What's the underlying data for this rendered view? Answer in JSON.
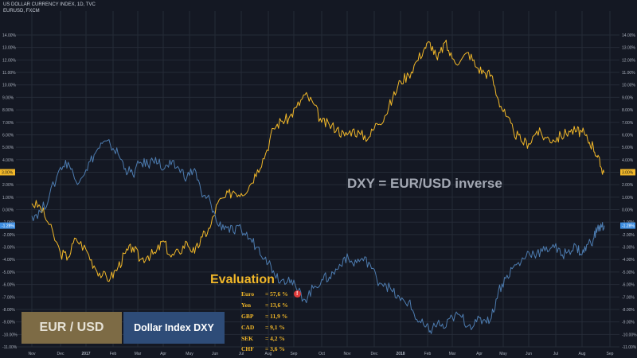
{
  "header": {
    "line1": "US DOLLAR CURRENCY INDEX, 1D, TVC",
    "line2": "EURUSD, FXCM"
  },
  "overlay_title": "DXY = EUR/USD inverse",
  "evaluation": {
    "title": "Evaluation",
    "weights": [
      {
        "currency": "Euro",
        "value": "= 57,6 %",
        "warning": "!"
      },
      {
        "currency": "Yen",
        "value": "= 13,6 %"
      },
      {
        "currency": "GBP",
        "value": "= 11,9 %"
      },
      {
        "currency": "CAD",
        "value": "= 9,1 %"
      },
      {
        "currency": "SEK",
        "value": "= 4,2 %"
      },
      {
        "currency": "CHF",
        "value": "= 3,6 %"
      }
    ]
  },
  "legend_boxes": {
    "eur_usd": "EUR / USD",
    "dxy": "Dollar Index DXY"
  },
  "colors": {
    "background": "#141823",
    "grid": "#252b37",
    "eurusd_line": "#f2b829",
    "dxy_line": "#4d7cb0",
    "axis_text": "#aab1bd"
  },
  "chart_data": {
    "type": "line",
    "ylim": [
      -11,
      14
    ],
    "y_ticks": [
      "14.00%",
      "13.00%",
      "12.00%",
      "11.00%",
      "10.00%",
      "9.00%",
      "8.00%",
      "7.00%",
      "6.00%",
      "5.00%",
      "4.00%",
      "3.00%",
      "2.00%",
      "1.00%",
      "0.00%",
      "-1.00%",
      "-2.00%",
      "-3.00%",
      "-4.00%",
      "-5.00%",
      "-6.00%",
      "-7.00%",
      "-8.00%",
      "-9.00%",
      "-10.00%",
      "-11.00%"
    ],
    "x_ticks": [
      "Nov",
      "Dec",
      "2017",
      "Feb",
      "Mar",
      "Apr",
      "May",
      "Jun",
      "Jul",
      "Aug",
      "Sep",
      "Oct",
      "Nov",
      "Dec",
      "2018",
      "Feb",
      "Mar",
      "Apr",
      "May",
      "Jun",
      "Jul",
      "Aug",
      "Sep"
    ],
    "x_range": [
      0,
      22
    ],
    "last_value_labels": {
      "eurusd": "3.00%",
      "dxy": "-1.28%"
    },
    "series": [
      {
        "key": "eurusd",
        "points": [
          [
            0,
            0.5
          ],
          [
            0.3,
            0.2
          ],
          [
            0.6,
            -1.2
          ],
          [
            1.0,
            -3.5
          ],
          [
            1.3,
            -3.8
          ],
          [
            1.6,
            -2.3
          ],
          [
            2.0,
            -3.2
          ],
          [
            2.3,
            -4.5
          ],
          [
            2.6,
            -5.3
          ],
          [
            2.9,
            -5.5
          ],
          [
            3.2,
            -4.6
          ],
          [
            3.5,
            -3.5
          ],
          [
            3.8,
            -3.0
          ],
          [
            4.1,
            -4.0
          ],
          [
            4.4,
            -3.7
          ],
          [
            4.7,
            -3.5
          ],
          [
            5.0,
            -2.5
          ],
          [
            5.3,
            -3.8
          ],
          [
            5.6,
            -3.4
          ],
          [
            5.9,
            -2.6
          ],
          [
            6.2,
            -3.5
          ],
          [
            6.5,
            -2.2
          ],
          [
            6.8,
            -1.5
          ],
          [
            7.1,
            0.5
          ],
          [
            7.4,
            1.0
          ],
          [
            7.7,
            1.5
          ],
          [
            8.0,
            1.3
          ],
          [
            8.3,
            1.9
          ],
          [
            8.6,
            3.2
          ],
          [
            8.9,
            4.5
          ],
          [
            9.2,
            6.5
          ],
          [
            9.5,
            7.1
          ],
          [
            9.8,
            7.3
          ],
          [
            10.1,
            8.2
          ],
          [
            10.4,
            9.2
          ],
          [
            10.7,
            8.5
          ],
          [
            11.0,
            7.0
          ],
          [
            11.3,
            6.8
          ],
          [
            11.6,
            6.5
          ],
          [
            11.9,
            5.9
          ],
          [
            12.2,
            6.4
          ],
          [
            12.5,
            6.0
          ],
          [
            12.8,
            5.8
          ],
          [
            13.1,
            6.9
          ],
          [
            13.4,
            7.5
          ],
          [
            13.7,
            8.9
          ],
          [
            14.0,
            10.3
          ],
          [
            14.3,
            10.8
          ],
          [
            14.6,
            11.9
          ],
          [
            14.9,
            13.0
          ],
          [
            15.1,
            13.4
          ],
          [
            15.4,
            12.0
          ],
          [
            15.7,
            13.4
          ],
          [
            16.0,
            12.1
          ],
          [
            16.3,
            11.9
          ],
          [
            16.6,
            12.6
          ],
          [
            16.9,
            11.4
          ],
          [
            17.2,
            11.0
          ],
          [
            17.5,
            10.8
          ],
          [
            17.8,
            8.8
          ],
          [
            18.1,
            7.5
          ],
          [
            18.4,
            6.3
          ],
          [
            18.7,
            5.5
          ],
          [
            19.0,
            5.3
          ],
          [
            19.3,
            6.3
          ],
          [
            19.6,
            5.8
          ],
          [
            19.9,
            5.6
          ],
          [
            20.2,
            5.9
          ],
          [
            20.5,
            6.3
          ],
          [
            20.8,
            6.3
          ],
          [
            21.0,
            6.2
          ],
          [
            21.2,
            5.6
          ],
          [
            21.4,
            5.1
          ],
          [
            21.55,
            4.2
          ],
          [
            21.7,
            3.3
          ],
          [
            21.8,
            3.0
          ]
        ]
      },
      {
        "key": "dxy",
        "points": [
          [
            0,
            -0.5
          ],
          [
            0.3,
            -0.2
          ],
          [
            0.6,
            1.0
          ],
          [
            1.0,
            3.4
          ],
          [
            1.3,
            3.8
          ],
          [
            1.6,
            2.3
          ],
          [
            2.0,
            3.2
          ],
          [
            2.3,
            4.4
          ],
          [
            2.6,
            5.3
          ],
          [
            2.9,
            5.2
          ],
          [
            3.2,
            4.5
          ],
          [
            3.5,
            3.3
          ],
          [
            3.8,
            2.8
          ],
          [
            4.1,
            3.8
          ],
          [
            4.4,
            3.6
          ],
          [
            4.7,
            4.2
          ],
          [
            5.0,
            3.2
          ],
          [
            5.3,
            3.6
          ],
          [
            5.6,
            3.3
          ],
          [
            5.9,
            2.6
          ],
          [
            6.2,
            3.3
          ],
          [
            6.5,
            1.0
          ],
          [
            6.8,
            0.8
          ],
          [
            7.1,
            -1.2
          ],
          [
            7.4,
            -1.3
          ],
          [
            7.7,
            -1.8
          ],
          [
            8.0,
            -1.6
          ],
          [
            8.3,
            -2.3
          ],
          [
            8.6,
            -3.0
          ],
          [
            8.9,
            -3.8
          ],
          [
            9.2,
            -4.9
          ],
          [
            9.5,
            -5.7
          ],
          [
            9.8,
            -5.4
          ],
          [
            10.1,
            -6.4
          ],
          [
            10.4,
            -7.2
          ],
          [
            10.7,
            -6.3
          ],
          [
            11.0,
            -5.6
          ],
          [
            11.3,
            -5.4
          ],
          [
            11.6,
            -4.8
          ],
          [
            11.9,
            -3.8
          ],
          [
            12.2,
            -4.3
          ],
          [
            12.5,
            -4.0
          ],
          [
            12.8,
            -4.2
          ],
          [
            13.1,
            -5.6
          ],
          [
            13.4,
            -5.9
          ],
          [
            13.7,
            -6.6
          ],
          [
            14.0,
            -7.3
          ],
          [
            14.3,
            -7.4
          ],
          [
            14.6,
            -8.8
          ],
          [
            14.9,
            -9.4
          ],
          [
            15.1,
            -9.7
          ],
          [
            15.4,
            -9.1
          ],
          [
            15.7,
            -9.5
          ],
          [
            16.0,
            -8.6
          ],
          [
            16.3,
            -8.5
          ],
          [
            16.6,
            -9.3
          ],
          [
            16.9,
            -9.0
          ],
          [
            17.2,
            -8.8
          ],
          [
            17.5,
            -8.7
          ],
          [
            17.8,
            -6.5
          ],
          [
            18.1,
            -5.5
          ],
          [
            18.4,
            -4.6
          ],
          [
            18.7,
            -4.2
          ],
          [
            19.0,
            -3.4
          ],
          [
            19.3,
            -3.5
          ],
          [
            19.6,
            -3.3
          ],
          [
            19.9,
            -2.8
          ],
          [
            20.2,
            -3.7
          ],
          [
            20.5,
            -3.2
          ],
          [
            20.8,
            -3.0
          ],
          [
            21.0,
            -3.6
          ],
          [
            21.2,
            -2.8
          ],
          [
            21.4,
            -2.4
          ],
          [
            21.55,
            -1.5
          ],
          [
            21.7,
            -1.4
          ],
          [
            21.8,
            -1.28
          ]
        ]
      }
    ]
  }
}
